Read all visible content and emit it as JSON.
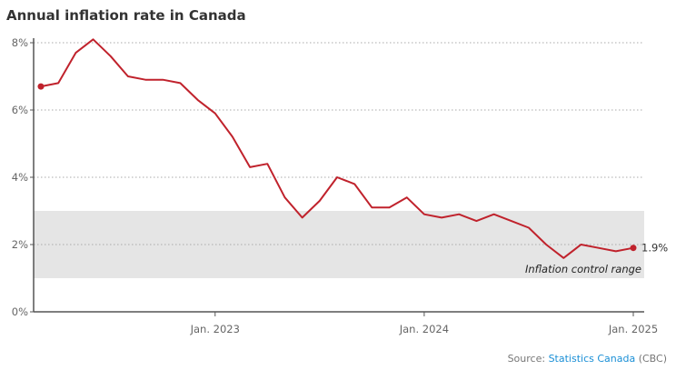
{
  "chart_data": {
    "type": "line",
    "title": "Annual inflation rate in Canada",
    "xlabel": "",
    "ylabel": "",
    "ylim": [
      0,
      8
    ],
    "y_ticks": [
      0,
      2,
      4,
      6,
      8
    ],
    "y_tick_labels": [
      "0%",
      "2%",
      "4%",
      "6%",
      "8%"
    ],
    "x_tick_labels": [
      {
        "label": "Jan. 2023",
        "index": 10
      },
      {
        "label": "Jan. 2024",
        "index": 22
      },
      {
        "label": "Jan. 2025",
        "index": 34
      }
    ],
    "grid": "horizontal dotted",
    "x": [
      "2022-03",
      "2022-04",
      "2022-05",
      "2022-06",
      "2022-07",
      "2022-08",
      "2022-09",
      "2022-10",
      "2022-11",
      "2022-12",
      "2023-01",
      "2023-02",
      "2023-03",
      "2023-04",
      "2023-05",
      "2023-06",
      "2023-07",
      "2023-08",
      "2023-09",
      "2023-10",
      "2023-11",
      "2023-12",
      "2024-01",
      "2024-02",
      "2024-03",
      "2024-04",
      "2024-05",
      "2024-06",
      "2024-07",
      "2024-08",
      "2024-09",
      "2024-10",
      "2024-11",
      "2024-12",
      "2025-01"
    ],
    "series": [
      {
        "name": "Annual inflation rate",
        "color": "#c0222c",
        "values": [
          6.7,
          6.8,
          7.7,
          8.1,
          7.6,
          7.0,
          6.9,
          6.9,
          6.8,
          6.3,
          5.9,
          5.2,
          4.3,
          4.4,
          3.4,
          2.8,
          3.3,
          4.0,
          3.8,
          3.1,
          3.1,
          3.4,
          2.9,
          2.8,
          2.9,
          2.7,
          2.9,
          2.7,
          2.5,
          2.0,
          1.6,
          2.0,
          1.9,
          1.8,
          1.9
        ]
      }
    ],
    "band": {
      "from": 1,
      "to": 3,
      "label": "Inflation control range",
      "color": "#e5e5e5"
    },
    "end_label": "1.9%"
  },
  "source": {
    "prefix": "Source: ",
    "link": "Statistics Canada",
    "suffix": " (CBC)"
  }
}
